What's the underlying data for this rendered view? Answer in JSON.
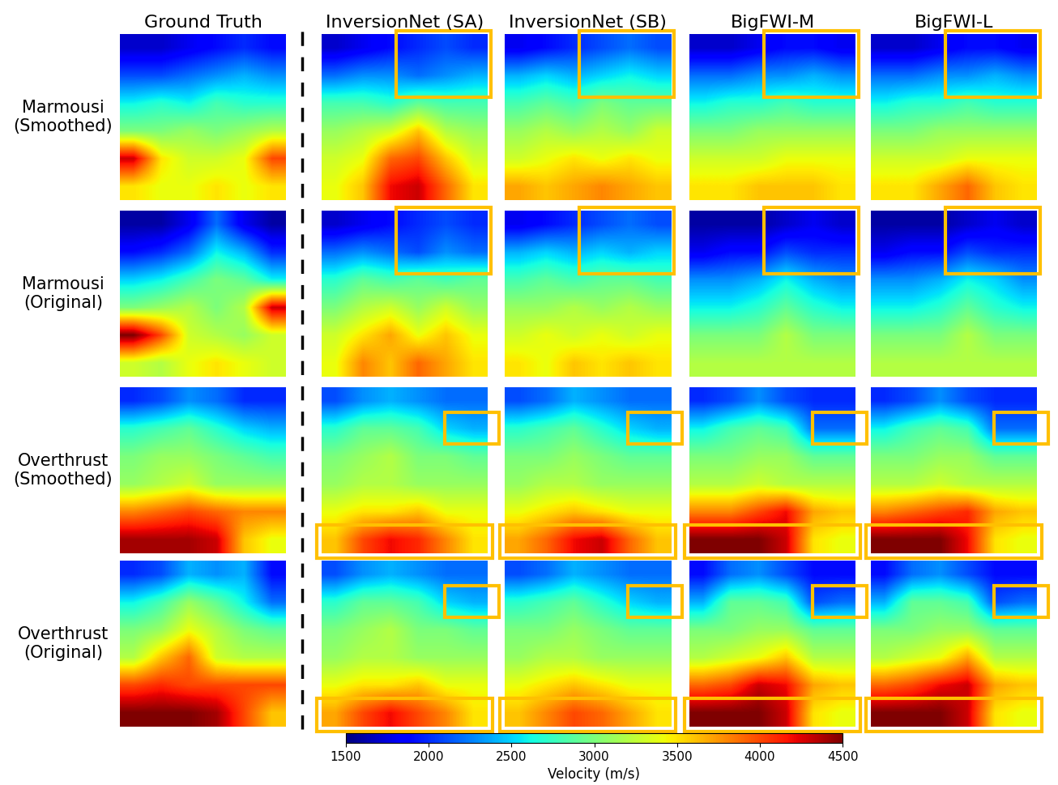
{
  "chart_data": {
    "type": "heatmap_grid",
    "column_titles": [
      "Ground Truth",
      "InversionNet (SA)",
      "InversionNet (SB)",
      "BigFWI-M",
      "BigFWI-L"
    ],
    "row_titles": [
      "Marmousi\n(Smoothed)",
      "Marmousi\n(Original)",
      "Overthrust\n(Smoothed)",
      "Overthrust\n(Original)"
    ],
    "colorbar_label": "Velocity (m/s)",
    "colorbar_range": [
      1500,
      4500
    ],
    "colorbar_ticks": [
      1500,
      2000,
      2500,
      3000,
      3500,
      4000,
      4500
    ],
    "tick_labels": false,
    "panels": [
      [
        [
          [
            1700,
            1700,
            1800,
            1900,
            2000,
            1900
          ],
          [
            2100,
            2100,
            2200,
            2300,
            2400,
            2300
          ],
          [
            2600,
            2700,
            2600,
            2800,
            2700,
            2700
          ],
          [
            3000,
            3000,
            3100,
            3000,
            3100,
            3200
          ],
          [
            4300,
            3500,
            3300,
            3300,
            3400,
            4000
          ],
          [
            3500,
            3400,
            3400,
            3500,
            3400,
            3500
          ]
        ],
        [
          [
            1700,
            1800,
            1900,
            2000,
            2100,
            2000
          ],
          [
            2200,
            2300,
            2300,
            2200,
            2300,
            2400
          ],
          [
            2800,
            2800,
            2700,
            2900,
            2800,
            2800
          ],
          [
            3100,
            3200,
            3300,
            3600,
            3200,
            3100
          ],
          [
            3300,
            3400,
            3900,
            4000,
            3600,
            3300
          ],
          [
            3400,
            3600,
            4200,
            4300,
            3900,
            3500
          ]
        ],
        [
          [
            1800,
            1900,
            2000,
            2100,
            2200,
            2100
          ],
          [
            2400,
            2500,
            2400,
            2500,
            2600,
            2500
          ],
          [
            2800,
            2900,
            2800,
            3000,
            2900,
            2900
          ],
          [
            3100,
            3200,
            3100,
            3200,
            3100,
            3300
          ],
          [
            3300,
            3400,
            3500,
            3400,
            3500,
            3400
          ],
          [
            3700,
            3600,
            3700,
            3800,
            3700,
            3600
          ]
        ],
        [
          [
            1700,
            1700,
            1800,
            1900,
            1900,
            1800
          ],
          [
            2200,
            2200,
            2300,
            2300,
            2400,
            2300
          ],
          [
            2600,
            2700,
            2700,
            2800,
            2700,
            2700
          ],
          [
            3000,
            3000,
            3100,
            3100,
            3100,
            3100
          ],
          [
            3300,
            3300,
            3300,
            3400,
            3400,
            3400
          ],
          [
            3500,
            3500,
            3600,
            3600,
            3600,
            3500
          ]
        ],
        [
          [
            1700,
            1700,
            1800,
            1900,
            1900,
            1800
          ],
          [
            2200,
            2200,
            2300,
            2300,
            2400,
            2300
          ],
          [
            2600,
            2700,
            2700,
            2800,
            2700,
            2700
          ],
          [
            3000,
            3000,
            3100,
            3100,
            3100,
            3100
          ],
          [
            3300,
            3300,
            3300,
            3400,
            3400,
            3400
          ],
          [
            3500,
            3500,
            3700,
            3900,
            3600,
            3500
          ]
        ]
      ],
      [
        [
          [
            1600,
            1600,
            1800,
            2200,
            1800,
            1600
          ],
          [
            1900,
            2000,
            2200,
            2600,
            2400,
            2000
          ],
          [
            2500,
            2600,
            2800,
            3000,
            2900,
            2600
          ],
          [
            3000,
            3100,
            3200,
            3000,
            3200,
            4300
          ],
          [
            4500,
            4000,
            3300,
            3200,
            3100,
            3300
          ],
          [
            3300,
            3200,
            3400,
            3500,
            3400,
            3300
          ]
        ],
        [
          [
            1700,
            1800,
            1900,
            2000,
            2100,
            2000
          ],
          [
            2200,
            2300,
            2200,
            2100,
            2300,
            2200
          ],
          [
            2700,
            2900,
            2800,
            2900,
            2800,
            2900
          ],
          [
            3000,
            3200,
            3300,
            3100,
            3300,
            3100
          ],
          [
            3300,
            3500,
            3700,
            3400,
            3600,
            3400
          ],
          [
            3400,
            3800,
            3600,
            3900,
            3700,
            3500
          ]
        ],
        [
          [
            1800,
            1900,
            2000,
            2100,
            2200,
            2100
          ],
          [
            2400,
            2500,
            2400,
            2500,
            2400,
            2500
          ],
          [
            2800,
            2900,
            2800,
            2900,
            2900,
            2800
          ],
          [
            3100,
            3100,
            3200,
            3100,
            3200,
            3100
          ],
          [
            3300,
            3400,
            3300,
            3400,
            3300,
            3400
          ],
          [
            3500,
            3400,
            3600,
            3500,
            3600,
            3500
          ]
        ],
        [
          [
            1600,
            1600,
            1600,
            1700,
            1800,
            1700
          ],
          [
            1800,
            1900,
            1900,
            2100,
            2000,
            2000
          ],
          [
            2300,
            2300,
            2400,
            2600,
            2400,
            2300
          ],
          [
            2600,
            2600,
            2700,
            2900,
            2700,
            2600
          ],
          [
            3000,
            3000,
            3000,
            3200,
            3000,
            3000
          ],
          [
            3200,
            3200,
            3200,
            3200,
            3200,
            3200
          ]
        ],
        [
          [
            1600,
            1600,
            1600,
            1700,
            1800,
            1700
          ],
          [
            1800,
            1900,
            1900,
            2100,
            2000,
            2000
          ],
          [
            2300,
            2300,
            2400,
            2600,
            2500,
            2300
          ],
          [
            2600,
            2600,
            2700,
            2900,
            2700,
            2600
          ],
          [
            3000,
            3000,
            3000,
            3200,
            3000,
            3000
          ],
          [
            3200,
            3200,
            3200,
            3200,
            3200,
            3200
          ]
        ]
      ],
      [
        [
          [
            2000,
            2100,
            2300,
            2200,
            2000,
            2000
          ],
          [
            2700,
            2800,
            2900,
            2700,
            2500,
            2400
          ],
          [
            3000,
            3100,
            3100,
            3000,
            2900,
            2800
          ],
          [
            3100,
            3200,
            3300,
            3100,
            3100,
            3100
          ],
          [
            3800,
            3900,
            4000,
            3900,
            3800,
            3800
          ],
          [
            4400,
            4400,
            4400,
            4300,
            3600,
            3400
          ]
        ],
        [
          [
            2100,
            2300,
            2400,
            2300,
            2200,
            2200
          ],
          [
            2700,
            2900,
            2900,
            2800,
            2500,
            2400
          ],
          [
            3000,
            3100,
            3200,
            3000,
            3000,
            2900
          ],
          [
            3100,
            3200,
            3200,
            3100,
            3100,
            3100
          ],
          [
            3400,
            3500,
            3500,
            3600,
            3400,
            3400
          ],
          [
            3600,
            4000,
            4200,
            4100,
            3800,
            3500
          ]
        ],
        [
          [
            2100,
            2200,
            2400,
            2300,
            2200,
            2200
          ],
          [
            2700,
            2800,
            2900,
            2700,
            2500,
            2400
          ],
          [
            3000,
            3000,
            3100,
            3000,
            2900,
            2900
          ],
          [
            3100,
            3200,
            3200,
            3100,
            3100,
            3100
          ],
          [
            3400,
            3500,
            3600,
            3500,
            3400,
            3400
          ],
          [
            3700,
            3900,
            4200,
            4300,
            3900,
            3600
          ]
        ],
        [
          [
            2000,
            2100,
            2300,
            2100,
            2000,
            2000
          ],
          [
            2600,
            2800,
            2900,
            2800,
            2200,
            2200
          ],
          [
            3000,
            3000,
            3100,
            3100,
            2900,
            2900
          ],
          [
            3200,
            3200,
            3300,
            3200,
            3200,
            3200
          ],
          [
            3800,
            3800,
            4000,
            4200,
            3700,
            3600
          ],
          [
            4500,
            4500,
            4500,
            4300,
            3500,
            3400
          ]
        ],
        [
          [
            2000,
            2100,
            2300,
            2100,
            2000,
            2000
          ],
          [
            2600,
            2800,
            2900,
            2800,
            2200,
            2200
          ],
          [
            3000,
            3000,
            3100,
            3100,
            2900,
            2900
          ],
          [
            3200,
            3200,
            3300,
            3200,
            3200,
            3200
          ],
          [
            3800,
            3900,
            4000,
            4100,
            3700,
            3600
          ],
          [
            4500,
            4500,
            4500,
            4200,
            3500,
            3400
          ]
        ]
      ],
      [
        [
          [
            2000,
            2100,
            2400,
            2300,
            2400,
            1900
          ],
          [
            2600,
            2800,
            3100,
            2900,
            2600,
            2200
          ],
          [
            3000,
            3100,
            3400,
            3200,
            3000,
            2900
          ],
          [
            3200,
            3600,
            3900,
            3300,
            3200,
            3200
          ],
          [
            4000,
            4100,
            4000,
            4000,
            4000,
            4000
          ],
          [
            4500,
            4500,
            4500,
            4400,
            4000,
            3600
          ]
        ],
        [
          [
            2100,
            2300,
            2400,
            2300,
            2200,
            2200
          ],
          [
            2700,
            2900,
            2900,
            2800,
            2500,
            2400
          ],
          [
            3000,
            3100,
            3200,
            3000,
            3000,
            2900
          ],
          [
            3100,
            3200,
            3200,
            3100,
            3100,
            3100
          ],
          [
            3400,
            3500,
            3500,
            3600,
            3400,
            3400
          ],
          [
            3700,
            4000,
            4200,
            4000,
            3800,
            3500
          ]
        ],
        [
          [
            2100,
            2200,
            2400,
            2300,
            2200,
            2200
          ],
          [
            2700,
            2800,
            2900,
            2700,
            2500,
            2400
          ],
          [
            3000,
            3000,
            3100,
            3000,
            2900,
            2900
          ],
          [
            3100,
            3200,
            3200,
            3100,
            3100,
            3100
          ],
          [
            3400,
            3500,
            3600,
            3500,
            3400,
            3400
          ],
          [
            3600,
            3800,
            4000,
            3900,
            3700,
            3500
          ]
        ],
        [
          [
            1900,
            2200,
            2300,
            2100,
            1900,
            1900
          ],
          [
            2400,
            2900,
            2900,
            2800,
            2100,
            2200
          ],
          [
            3000,
            3000,
            3100,
            3100,
            2900,
            2900
          ],
          [
            3200,
            3300,
            3400,
            3600,
            3200,
            3200
          ],
          [
            3900,
            4000,
            4300,
            4200,
            3700,
            3600
          ],
          [
            4500,
            4500,
            4500,
            4300,
            3500,
            3400
          ]
        ],
        [
          [
            1900,
            2200,
            2300,
            2100,
            1900,
            1900
          ],
          [
            2400,
            2900,
            2900,
            2800,
            2100,
            2200
          ],
          [
            3000,
            3000,
            3100,
            3100,
            2900,
            2900
          ],
          [
            3200,
            3300,
            3400,
            3700,
            3200,
            3200
          ],
          [
            3900,
            4000,
            4200,
            4300,
            3700,
            3600
          ],
          [
            4500,
            4500,
            4500,
            4300,
            3500,
            3400
          ]
        ]
      ]
    ]
  }
}
